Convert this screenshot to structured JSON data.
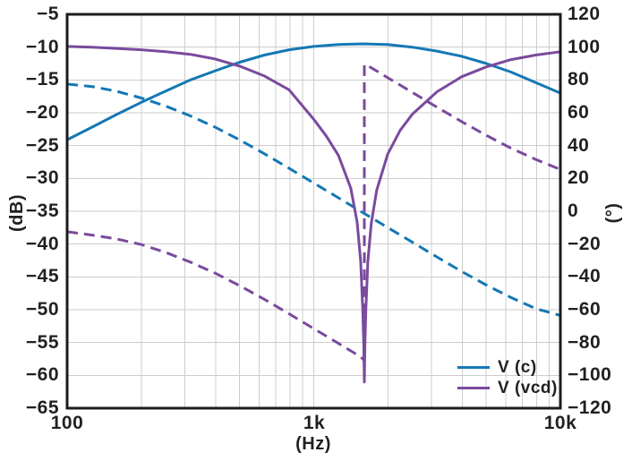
{
  "chart_data": {
    "type": "line",
    "title": "",
    "xlabel": "(Hz)",
    "ylabel_left": "(dB)",
    "ylabel_right": "(°)",
    "x_scale": "log",
    "x_range": [
      100,
      10000
    ],
    "x_ticks": [
      {
        "f": 100,
        "label": "100"
      },
      {
        "f": 1000,
        "label": "1k"
      },
      {
        "f": 10000,
        "label": "10k"
      }
    ],
    "y_left_range": [
      -65,
      -5
    ],
    "y_left_tick_step": 5,
    "y_left_ticks": [
      "−5",
      "−10",
      "−15",
      "−20",
      "−25",
      "−30",
      "−35",
      "−40",
      "−45",
      "−50",
      "−55",
      "−60",
      "−65"
    ],
    "y_right_range": [
      -120,
      120
    ],
    "y_right_tick_step": 20,
    "y_right_ticks": [
      "120",
      "100",
      "80",
      "60",
      "40",
      "20",
      "0",
      "−20",
      "−40",
      "−60",
      "−80",
      "−100",
      "−120"
    ],
    "grid": true,
    "grid_color": "#cdcdcd",
    "border_color": "#1c1c1c",
    "background_color": "#ffffff",
    "text_color": "#231f20",
    "legend": {
      "position": "bottom-right",
      "entries": [
        {
          "label": "V (c)",
          "color": "#1478b4",
          "style": "solid"
        },
        {
          "label": "V (vcd)",
          "color": "#7a4a9d",
          "style": "solid"
        }
      ]
    },
    "series": [
      {
        "id": "vc_mag",
        "name": "V(c) magnitude",
        "axis": "left",
        "unit": "dB",
        "color": "#1478b4",
        "style": "solid",
        "points": [
          [
            100,
            -24.1
          ],
          [
            126,
            -22.2
          ],
          [
            158,
            -20.3
          ],
          [
            200,
            -18.4
          ],
          [
            251,
            -16.7
          ],
          [
            316,
            -15.0
          ],
          [
            398,
            -13.6
          ],
          [
            501,
            -12.3
          ],
          [
            631,
            -11.2
          ],
          [
            794,
            -10.4
          ],
          [
            1000,
            -9.9
          ],
          [
            1259,
            -9.6
          ],
          [
            1585,
            -9.5
          ],
          [
            1995,
            -9.6
          ],
          [
            2512,
            -10.0
          ],
          [
            3162,
            -10.6
          ],
          [
            3981,
            -11.4
          ],
          [
            5012,
            -12.5
          ],
          [
            6310,
            -13.8
          ],
          [
            7943,
            -15.4
          ],
          [
            10000,
            -17.0
          ]
        ]
      },
      {
        "id": "vc_phase",
        "name": "V(c) phase",
        "axis": "right",
        "unit": "deg",
        "color": "#1478b4",
        "style": "dashed",
        "points": [
          [
            100,
            77.5
          ],
          [
            126,
            76.0
          ],
          [
            158,
            73.2
          ],
          [
            200,
            69.0
          ],
          [
            251,
            64.1
          ],
          [
            316,
            58.1
          ],
          [
            398,
            51.2
          ],
          [
            501,
            43.5
          ],
          [
            631,
            35.0
          ],
          [
            794,
            26.2
          ],
          [
            1000,
            17.2
          ],
          [
            1259,
            8.2
          ],
          [
            1585,
            -0.9
          ],
          [
            1995,
            -9.9
          ],
          [
            2512,
            -18.9
          ],
          [
            3162,
            -27.9
          ],
          [
            3981,
            -36.7
          ],
          [
            5012,
            -45.0
          ],
          [
            6310,
            -52.6
          ],
          [
            7943,
            -59.3
          ],
          [
            10000,
            -63.5
          ]
        ]
      },
      {
        "id": "vcd_mag",
        "name": "V(vcd) magnitude",
        "axis": "left",
        "unit": "dB",
        "color": "#7a4a9d",
        "style": "solid",
        "points": [
          [
            100,
            -9.9
          ],
          [
            126,
            -10.0
          ],
          [
            158,
            -10.2
          ],
          [
            200,
            -10.4
          ],
          [
            251,
            -10.7
          ],
          [
            316,
            -11.1
          ],
          [
            398,
            -11.8
          ],
          [
            501,
            -12.9
          ],
          [
            631,
            -14.4
          ],
          [
            794,
            -16.5
          ],
          [
            1000,
            -21.0
          ],
          [
            1122,
            -23.5
          ],
          [
            1259,
            -26.5
          ],
          [
            1413,
            -31.5
          ],
          [
            1500,
            -36.7
          ],
          [
            1550,
            -42.6
          ],
          [
            1580,
            -49.9
          ],
          [
            1595,
            -55.5
          ],
          [
            1603,
            -61.0
          ],
          [
            1612,
            -55.5
          ],
          [
            1626,
            -50.0
          ],
          [
            1657,
            -42.7
          ],
          [
            1710,
            -36.9
          ],
          [
            1800,
            -31.8
          ],
          [
            1995,
            -26.3
          ],
          [
            2239,
            -22.7
          ],
          [
            2512,
            -20.2
          ],
          [
            3162,
            -16.8
          ],
          [
            3981,
            -14.5
          ],
          [
            5012,
            -13.0
          ],
          [
            6310,
            -11.9
          ],
          [
            7943,
            -11.2
          ],
          [
            10000,
            -10.7
          ]
        ]
      },
      {
        "id": "vcd_phase",
        "name": "V(vcd) phase",
        "axis": "right",
        "unit": "deg",
        "color": "#7a4a9d",
        "style": "dashed",
        "points": [
          [
            100,
            -12.5
          ],
          [
            126,
            -14.5
          ],
          [
            158,
            -16.8
          ],
          [
            200,
            -20.3
          ],
          [
            251,
            -25.1
          ],
          [
            316,
            -31.0
          ],
          [
            398,
            -37.7
          ],
          [
            501,
            -45.4
          ],
          [
            631,
            -53.7
          ],
          [
            794,
            -62.5
          ],
          [
            1000,
            -71.5
          ],
          [
            1259,
            -80.5
          ],
          [
            1413,
            -85.1
          ],
          [
            1550,
            -88.7
          ],
          [
            1603,
            -91.0
          ],
          [
            1603,
            89.5
          ],
          [
            1660,
            88.6
          ],
          [
            1800,
            85.5
          ],
          [
            1995,
            81.4
          ],
          [
            2239,
            76.9
          ],
          [
            2512,
            72.4
          ],
          [
            3162,
            63.4
          ],
          [
            3981,
            54.6
          ],
          [
            5012,
            46.2
          ],
          [
            6310,
            38.4
          ],
          [
            7943,
            31.6
          ],
          [
            10000,
            25.5
          ]
        ]
      }
    ]
  }
}
